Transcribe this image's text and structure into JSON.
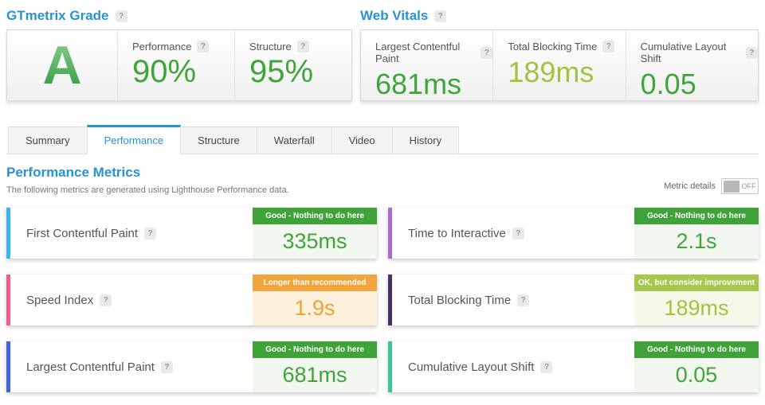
{
  "help_icon": "?",
  "colors": {
    "heading_blue": "#2793d2",
    "good_green": "#3fa53b",
    "ok_yellow_green": "#9ec43f",
    "warning_orange": "#f0a235",
    "badge_good_bg": "#3fa33a",
    "badge_ok_bg": "#a5c84e",
    "badge_warning_bg": "#f2a53c",
    "accent_first_contentful_paint": "#3ab6ed",
    "accent_time_to_interactive": "#a96ad4",
    "accent_speed_index": "#ee5e93",
    "accent_total_blocking_time": "#4a3163",
    "accent_largest_contentful_paint": "#4065d8",
    "accent_cumulative_layout_shift": "#3ec39a"
  },
  "grade_section": {
    "title": "GTmetrix Grade",
    "grade": "A",
    "metrics": [
      {
        "label": "Performance",
        "value": "90%"
      },
      {
        "label": "Structure",
        "value": "95%"
      }
    ]
  },
  "web_vitals_section": {
    "title": "Web Vitals",
    "metrics": [
      {
        "label": "Largest Contentful Paint",
        "value": "681ms",
        "tone": "good"
      },
      {
        "label": "Total Blocking Time",
        "value": "189ms",
        "tone": "ok"
      },
      {
        "label": "Cumulative Layout Shift",
        "value": "0.05",
        "tone": "good"
      }
    ]
  },
  "tabs": [
    {
      "label": "Summary",
      "active": false
    },
    {
      "label": "Performance",
      "active": true
    },
    {
      "label": "Structure",
      "active": false
    },
    {
      "label": "Waterfall",
      "active": false
    },
    {
      "label": "Video",
      "active": false
    },
    {
      "label": "History",
      "active": false
    }
  ],
  "metrics_section": {
    "title": "Performance Metrics",
    "subtitle": "The following metrics are generated using Lighthouse Performance data.",
    "toggle_label": "Metric details",
    "toggle_state": "OFF",
    "cards": [
      {
        "label": "First Contentful Paint",
        "value": "335ms",
        "badge": "Good - Nothing to do here",
        "tone": "good"
      },
      {
        "label": "Time to Interactive",
        "value": "2.1s",
        "badge": "Good - Nothing to do here",
        "tone": "good"
      },
      {
        "label": "Speed Index",
        "value": "1.9s",
        "badge": "Longer than recommended",
        "tone": "warning"
      },
      {
        "label": "Total Blocking Time",
        "value": "189ms",
        "badge": "OK, but consider improvement",
        "tone": "ok"
      },
      {
        "label": "Largest Contentful Paint",
        "value": "681ms",
        "badge": "Good - Nothing to do here",
        "tone": "good"
      },
      {
        "label": "Cumulative Layout Shift",
        "value": "0.05",
        "badge": "Good - Nothing to do here",
        "tone": "good"
      }
    ]
  }
}
